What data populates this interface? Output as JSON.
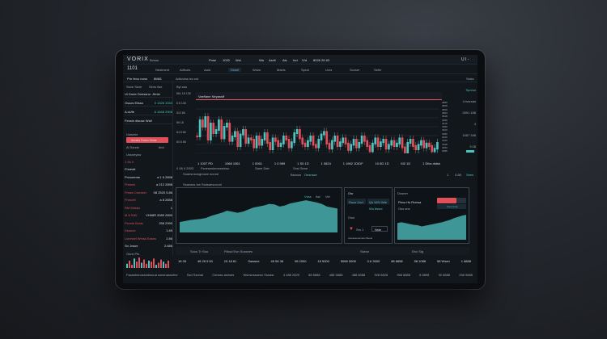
{
  "header": {
    "logo": "VORIX",
    "subtitle": "Bvsau",
    "menu": [
      "Pnse",
      "1020",
      "Wsi"
    ],
    "center": [
      "Wa",
      "Asvit",
      "Ais",
      "Ind",
      "V/d",
      "8026 26 63"
    ],
    "right": "U I -"
  },
  "toolbar": {
    "symbol": "1101",
    "tabs": [
      "Nestment",
      "Adfusts",
      "Aaid",
      "Dosei",
      "Wsirs",
      "Maels",
      "Spcnl",
      "Ucrs",
      "Scoser",
      "Ssfer"
    ]
  },
  "subbar": {
    "left": "Pre feno nons",
    "value": "8M81",
    "title": "Adtuvtas isn ost",
    "right": "Ssiss"
  },
  "sidebar": {
    "header": [
      "Ssne Swre",
      "Sinrs ifse"
    ],
    "items": [
      {
        "label": "Ui Durer Dnessno. Jhnte",
        "value": "",
        "color": "w"
      },
      {
        "label": "Ossos Eiisss",
        "value": "0 1326 1040",
        "color": "teal"
      },
      {
        "label": "A aUfe",
        "value": "A 1648 2908",
        "color": "teal"
      },
      {
        "label": "Feosin disuse Wsif",
        "value": "",
        "color": "w"
      }
    ],
    "section": "Ustsmie",
    "button": "Aoraes Fsesu Osias",
    "sub": [
      "Ai Ssnds",
      "bbd"
    ],
    "section2": "Ussneysw",
    "list": [
      {
        "label": "1 Ss ii",
        "value": "",
        "color": "red"
      },
      {
        "label": "Fhnestt",
        "value": "",
        "color": "w"
      },
      {
        "label": "Pnvoeeme",
        "value": "a 1 6 2898",
        "color": "w"
      },
      {
        "label": "Fheses",
        "value": "a 212 2898",
        "color": "red"
      },
      {
        "label": "Fnsse Csrrsser",
        "value": "08 2520 5.86",
        "color": "red"
      },
      {
        "label": "Fhrsvrtt",
        "value": "a 8 2658",
        "color": "red"
      },
      {
        "label": "RM Mdsbs",
        "value": "1",
        "color": "red"
      },
      {
        "label": "M 8 SAV",
        "value": "VH68R 2089 2890",
        "color": "red"
      },
      {
        "label": "Pnvsie Bvsis",
        "value": "258 2990",
        "color": "red"
      },
      {
        "label": "Dsusoe",
        "value": "1.89",
        "color": "red"
      },
      {
        "label": "Lsnesiei Wrsss Easns",
        "value": "2.86",
        "color": "red"
      },
      {
        "label": "Sn Jvsue",
        "value": "2.686",
        "color": "w"
      }
    ],
    "mini_chart_title": "Osrsl Pfs",
    "mini_bars": [
      4,
      7,
      3,
      9,
      6,
      10,
      5,
      8,
      4,
      7,
      6,
      9,
      3,
      5,
      8,
      6,
      4,
      7
    ]
  },
  "main_chart": {
    "tab": "Byl sau",
    "legend": "Vaeflane Neyassff",
    "left_axis": [
      "861 18 138",
      "8 8 136",
      "812 86",
      "86 18",
      "84 8 86",
      "80 8 88"
    ],
    "right_axis": [
      "3889",
      "3808",
      "3650",
      "3584",
      "3528",
      "3480",
      "3416",
      "3380",
      "3320",
      "3280",
      "3226",
      "3160",
      "3108",
      "3050",
      "2986"
    ],
    "bottom": [
      "1 1007 PD",
      "1068 1061",
      "1 0061",
      "1 0 989",
      "1 S0 1D",
      "1 0824",
      "1 1962 1DIDF",
      "10 6D 1D",
      "M2 1D",
      "1 Dfcs dstsk"
    ],
    "status": [
      "0 08 4 2003",
      "Fsnesesinnrsseinso",
      "Sane Dstr",
      "Snsi Sene"
    ],
    "candles": [
      55,
      30,
      40,
      25,
      60,
      35,
      50,
      45,
      30,
      58,
      40,
      35,
      62,
      55,
      48,
      70,
      52,
      45,
      65,
      58,
      60,
      72,
      55,
      68,
      60,
      50,
      65,
      75,
      58,
      62,
      70,
      66,
      55,
      60,
      72,
      64,
      50,
      45,
      58,
      66,
      70,
      62,
      55,
      68,
      72,
      60,
      52,
      48,
      66,
      74,
      62,
      55,
      70,
      64,
      58,
      66,
      76,
      68,
      60,
      72,
      65,
      55,
      62,
      70,
      78,
      66,
      58,
      70,
      64,
      60,
      74,
      68,
      62,
      70,
      66,
      58,
      72,
      80,
      65,
      60,
      70,
      75,
      68,
      62,
      72,
      66,
      70,
      78,
      74,
      65
    ]
  },
  "right_panel": {
    "items": [
      "Sprvsn",
      "Lhvsrsas",
      "2891 188",
      "4",
      "1587 188",
      "3 08"
    ]
  },
  "strip": {
    "left": "Soaesnsnngnowe eorool",
    "mid": [
      "Bssnos",
      "Oesnsse"
    ],
    "right": [
      "1",
      "0.88",
      "Sees"
    ]
  },
  "lower": {
    "title": "Ssaeass Ise Ssdsaesoxonl",
    "panel1": {
      "labels": [
        "Vsss",
        "Asl",
        "Vel"
      ],
      "area": [
        20,
        22,
        24,
        25,
        26,
        28,
        32,
        35,
        38,
        42,
        40,
        38,
        40,
        44,
        48,
        50,
        52,
        55,
        54,
        50,
        52,
        56,
        58,
        60,
        62,
        60,
        58,
        55,
        50,
        48,
        46
      ]
    },
    "panel2": {
      "title": "Osr",
      "cells": [
        "Ruus Uvd",
        "Qs WSI Wte",
        "Wu 8ssnr"
      ],
      "sub": "Ossi",
      "value": "Srs 1",
      "input": "Nsie",
      "foot": "Aooaeseuoneus Beoei"
    },
    "panel3": {
      "title": "Dusner",
      "label": "Pknu Hs Rrersa",
      "sub": "Oss sns",
      "button": "Usre Usre",
      "area": [
        40,
        42,
        40,
        38,
        36,
        35,
        32,
        34,
        36,
        38,
        40,
        42,
        45,
        48,
        52,
        55,
        58,
        60
      ]
    }
  },
  "bottom": {
    "row1": [
      "Soos Tr Ssa",
      "Fiiksd Esn Sussnes",
      "Ssinsr",
      "Ebo Sig"
    ],
    "row2": [
      "18 28",
      "48 28 5 50",
      "15 18 81",
      "Sawsne",
      "45 08 38",
      "08 2000",
      "18 5000",
      "5068 0008",
      "0.6 3000",
      "88 8858",
      "58 1088",
      "58 Wsen",
      "1 6888"
    ],
    "row3": [
      "Fasaubsnussiubsuua sonsnassnfne",
      "Ssd Ssnnal",
      "Cnnsss asnses",
      "Wsnsnsssesn Ssnasr",
      "4 488 2829",
      "88 8888",
      "488 5888",
      "488 8088",
      "928 8828",
      "958 8888",
      "8 8898",
      "90 8888",
      "258 9888"
    ]
  },
  "colors": {
    "up": "#4fc3c0",
    "down": "#e0505a",
    "bg": "#12171c"
  }
}
